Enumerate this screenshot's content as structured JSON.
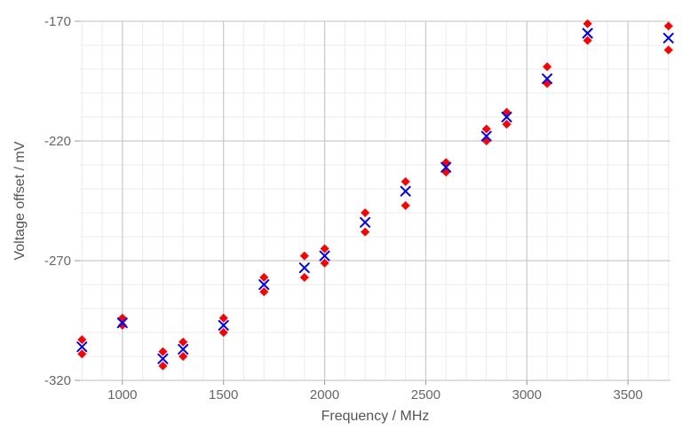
{
  "chart_data": {
    "type": "scatter",
    "title": "",
    "xlabel": "Frequency / MHz",
    "ylabel": "Voltage offset / mV",
    "xlim": [
      790,
      3710
    ],
    "ylim": [
      -320,
      -170
    ],
    "x_ticks": [
      1000,
      1500,
      2000,
      2500,
      3000,
      3500
    ],
    "y_ticks": [
      -170,
      -220,
      -270,
      -320
    ],
    "grid": true,
    "minor_grid": true,
    "legend": "none",
    "colors": {
      "series_1": "#ff0000",
      "series_2": "#0000ff",
      "grid_major": "#cccccc",
      "grid_minor": "#ebebeb"
    },
    "series": [
      {
        "marker": "diamond",
        "color": "#ff0000",
        "points": [
          [
            800,
            -303
          ],
          [
            800,
            -309
          ],
          [
            1000,
            -294
          ],
          [
            1000,
            -297
          ],
          [
            1200,
            -308
          ],
          [
            1200,
            -314
          ],
          [
            1300,
            -304
          ],
          [
            1300,
            -310
          ],
          [
            1500,
            -294
          ],
          [
            1500,
            -300
          ],
          [
            1700,
            -277
          ],
          [
            1700,
            -283
          ],
          [
            1900,
            -268
          ],
          [
            1900,
            -277
          ],
          [
            2000,
            -265
          ],
          [
            2000,
            -271
          ],
          [
            2200,
            -250
          ],
          [
            2200,
            -258
          ],
          [
            2400,
            -237
          ],
          [
            2400,
            -247
          ],
          [
            2600,
            -229
          ],
          [
            2600,
            -233
          ],
          [
            2800,
            -215
          ],
          [
            2800,
            -220
          ],
          [
            2900,
            -208
          ],
          [
            2900,
            -213
          ],
          [
            3100,
            -189
          ],
          [
            3100,
            -196
          ],
          [
            3300,
            -171
          ],
          [
            3300,
            -178
          ],
          [
            3700,
            -172
          ],
          [
            3700,
            -182
          ]
        ]
      },
      {
        "marker": "x",
        "color": "#0000ff",
        "points": [
          [
            800,
            -306
          ],
          [
            1000,
            -296
          ],
          [
            1200,
            -311
          ],
          [
            1300,
            -307
          ],
          [
            1500,
            -297
          ],
          [
            1700,
            -280
          ],
          [
            1900,
            -273
          ],
          [
            2000,
            -268
          ],
          [
            2200,
            -254
          ],
          [
            2400,
            -241
          ],
          [
            2600,
            -231
          ],
          [
            2800,
            -218
          ],
          [
            2900,
            -210
          ],
          [
            3100,
            -194
          ],
          [
            3300,
            -175
          ],
          [
            3700,
            -177
          ]
        ]
      }
    ]
  }
}
